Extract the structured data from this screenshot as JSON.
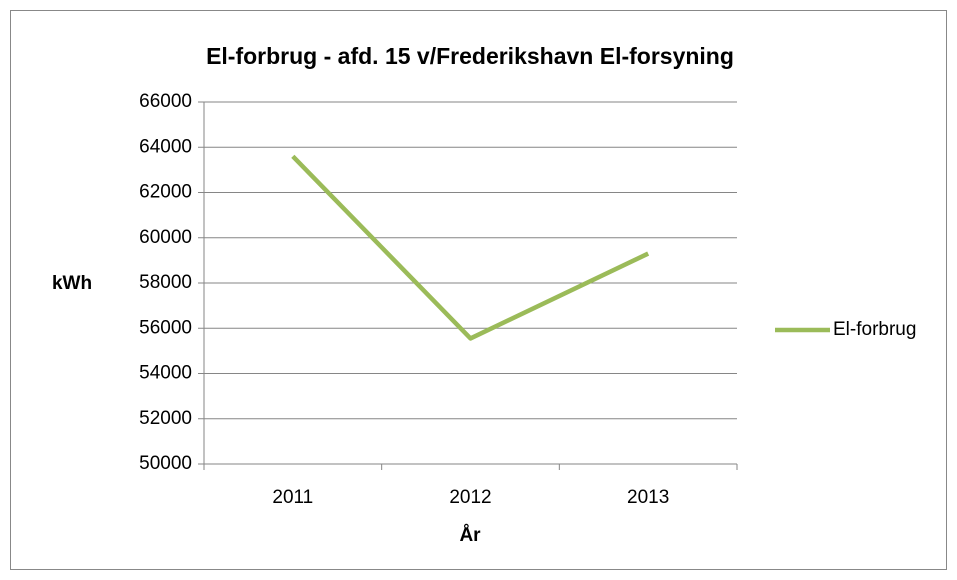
{
  "chart_data": {
    "type": "line",
    "title": "El-forbrug - afd. 15 v/Frederikshavn El-forsyning",
    "x_label": "År",
    "y_label": "kWh",
    "categories": [
      "2011",
      "2012",
      "2013"
    ],
    "series": [
      {
        "name": "El-forbrug",
        "color": "#9bbb59",
        "values": [
          63600,
          55550,
          59300
        ]
      }
    ],
    "ylim": [
      50000,
      66000
    ],
    "yticks": [
      50000,
      52000,
      54000,
      56000,
      58000,
      60000,
      62000,
      64000,
      66000
    ],
    "grid": true,
    "legend": "right"
  }
}
